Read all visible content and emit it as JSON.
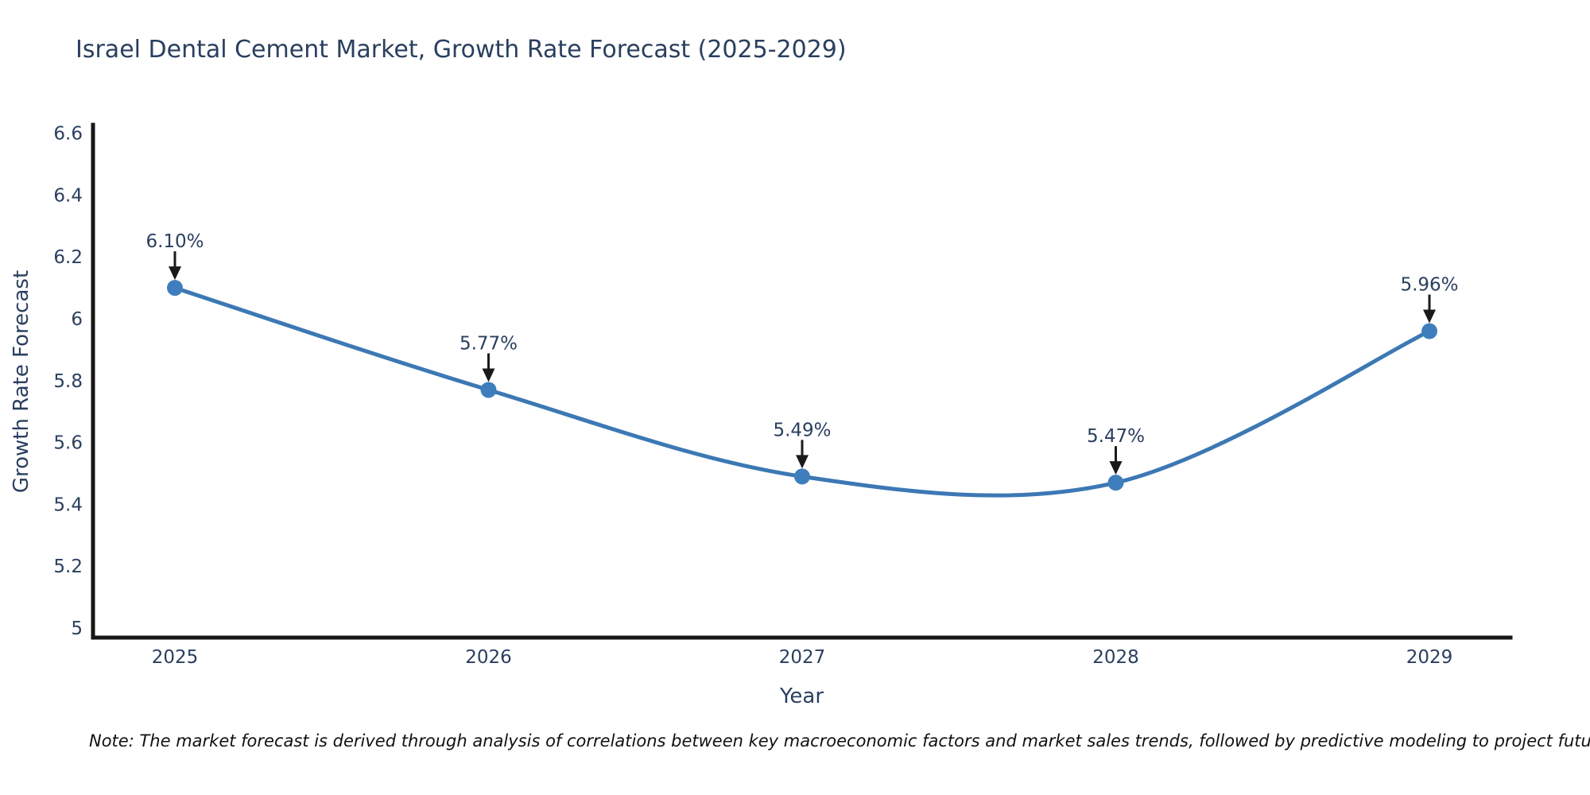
{
  "title": "Israel Dental Cement Market, Growth Rate Forecast (2025-2029)",
  "note": "Note: The market forecast is derived through analysis of correlations between key macroeconomic factors and market sales trends, followed by predictive modeling to project future sales",
  "chart_data": {
    "type": "line",
    "line_shape": "spline",
    "x": [
      2025,
      2026,
      2027,
      2028,
      2029
    ],
    "values": [
      6.1,
      5.77,
      5.49,
      5.47,
      5.96
    ],
    "point_labels": [
      "6.10%",
      "5.77%",
      "5.49%",
      "5.47%",
      "5.96%"
    ],
    "x_tick_labels": [
      "2025",
      "2026",
      "2027",
      "2028",
      "2029"
    ],
    "y_tick_labels": [
      "5",
      "5.2",
      "5.4",
      "5.6",
      "5.8",
      "6",
      "6.2",
      "6.4",
      "6.6"
    ],
    "y_tick_values": [
      5,
      5.2,
      5.4,
      5.6,
      5.8,
      6,
      6.2,
      6.4,
      6.6
    ],
    "xlabel": "Year",
    "ylabel": "Growth Rate Forecast",
    "ylim": [
      4.97,
      6.63
    ],
    "grid": false,
    "legend": "none",
    "colors": {
      "line": "#3c78b4",
      "marker": "#3f7ebd",
      "text": "#2a3f5f",
      "axis": "#161616",
      "arrow": "#1a1a1a"
    }
  }
}
